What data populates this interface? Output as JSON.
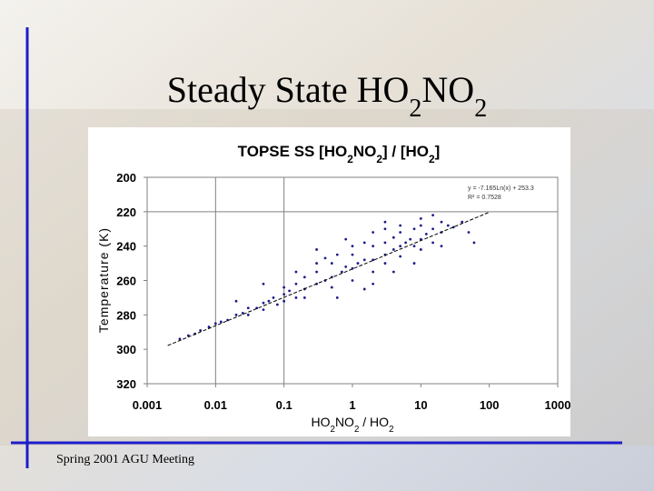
{
  "slide": {
    "title": [
      {
        "text": "Steady State HO"
      },
      {
        "text": "2",
        "sub": true
      },
      {
        "text": "NO"
      },
      {
        "text": "2",
        "sub": true
      }
    ],
    "footer": "Spring 2001 AGU Meeting"
  },
  "chart_data": {
    "type": "scatter",
    "title": [
      {
        "text": "TOPSE SS [HO"
      },
      {
        "text": "2",
        "sub": true
      },
      {
        "text": "NO"
      },
      {
        "text": "2",
        "sub": true
      },
      {
        "text": "] / [HO"
      },
      {
        "text": "2",
        "sub": true
      },
      {
        "text": "]"
      }
    ],
    "x_label": [
      {
        "text": "HO"
      },
      {
        "text": "2",
        "sub": true
      },
      {
        "text": "NO"
      },
      {
        "text": "2",
        "sub": true
      },
      {
        "text": " / HO"
      },
      {
        "text": "2",
        "sub": true
      }
    ],
    "y_label": "Temperature (K)",
    "xscale": "log",
    "xlim": [
      0.001,
      1000
    ],
    "xticks": [
      0.001,
      0.01,
      0.1,
      1,
      10,
      100,
      1000
    ],
    "ylim": [
      200,
      320
    ],
    "y_inverted": true,
    "yticks": [
      200,
      220,
      240,
      260,
      280,
      300,
      320
    ],
    "xgrid": [
      0.01,
      0.1
    ],
    "ygrid": [
      220
    ],
    "annotations": [
      "y = -7.165Ln(x) + 253.3",
      "R² = 0.7528"
    ],
    "series": [
      {
        "color": "#1c1c8a",
        "x": [
          0.003,
          0.004,
          0.005,
          0.006,
          0.008,
          0.01,
          0.012,
          0.015,
          0.02,
          0.025,
          0.03,
          0.03,
          0.04,
          0.05,
          0.05,
          0.06,
          0.07,
          0.08,
          0.1,
          0.1,
          0.1,
          0.12,
          0.15,
          0.15,
          0.2,
          0.2,
          0.2,
          0.3,
          0.3,
          0.3,
          0.4,
          0.5,
          0.5,
          0.5,
          0.6,
          0.7,
          0.8,
          1,
          1,
          1,
          1,
          1.2,
          1.5,
          1.5,
          2,
          2,
          2,
          2,
          3,
          3,
          3,
          3,
          4,
          4,
          5,
          5,
          5,
          5,
          6,
          7,
          8,
          8,
          10,
          10,
          10,
          10,
          12,
          15,
          15,
          20,
          20,
          20,
          25,
          30,
          40,
          50,
          60,
          0.05,
          0.3,
          0.8,
          3,
          1.5,
          0.15,
          0.02,
          8,
          0.6,
          2,
          4,
          15,
          0.4
        ],
        "values": [
          294,
          292,
          291,
          289,
          287,
          285,
          284,
          283,
          280,
          279,
          276,
          280,
          276,
          273,
          277,
          272,
          270,
          274,
          268,
          272,
          264,
          266,
          262,
          270,
          265,
          258,
          270,
          262,
          255,
          250,
          260,
          258,
          250,
          264,
          245,
          255,
          252,
          253,
          245,
          260,
          240,
          250,
          248,
          238,
          248,
          255,
          240,
          232,
          245,
          238,
          250,
          230,
          242,
          235,
          240,
          246,
          232,
          228,
          238,
          236,
          240,
          230,
          236,
          228,
          242,
          224,
          233,
          230,
          238,
          232,
          226,
          240,
          228,
          229,
          226,
          232,
          238,
          262,
          242,
          236,
          226,
          265,
          255,
          272,
          250,
          270,
          262,
          255,
          222,
          247
        ]
      }
    ],
    "trendline": {
      "color": "#000000",
      "x": [
        0.002,
        100
      ],
      "values": [
        297.8,
        220.3
      ]
    }
  }
}
